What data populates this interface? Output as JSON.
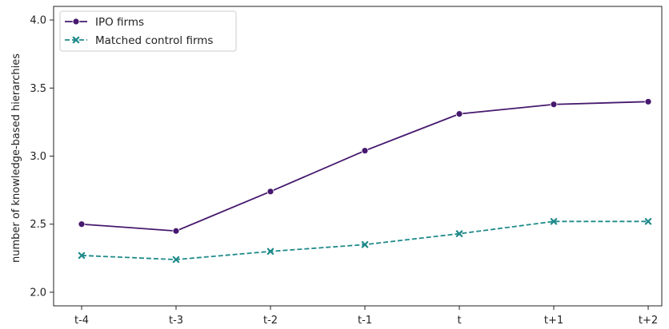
{
  "chart_data": {
    "type": "line",
    "title": "",
    "xlabel": "",
    "ylabel": "number of knowledge-based hierarchies",
    "categories": [
      "t-4",
      "t-3",
      "t-2",
      "t-1",
      "t",
      "t+1",
      "t+2"
    ],
    "ylim": [
      1.9,
      4.1
    ],
    "yticks": [
      "2.0",
      "2.5",
      "3.0",
      "3.5",
      "4.0"
    ],
    "grid": false,
    "legend_position": "top-left",
    "series": [
      {
        "name": "IPO firms",
        "values": [
          2.5,
          2.45,
          2.74,
          3.04,
          3.31,
          3.38,
          3.4
        ],
        "color": "#46186e",
        "line_style": "solid",
        "marker": "circle"
      },
      {
        "name": "Matched control firms",
        "values": [
          2.27,
          2.24,
          2.3,
          2.35,
          2.43,
          2.52,
          2.52
        ],
        "color": "#1f8a8a",
        "line_style": "dashed",
        "marker": "x"
      }
    ]
  }
}
